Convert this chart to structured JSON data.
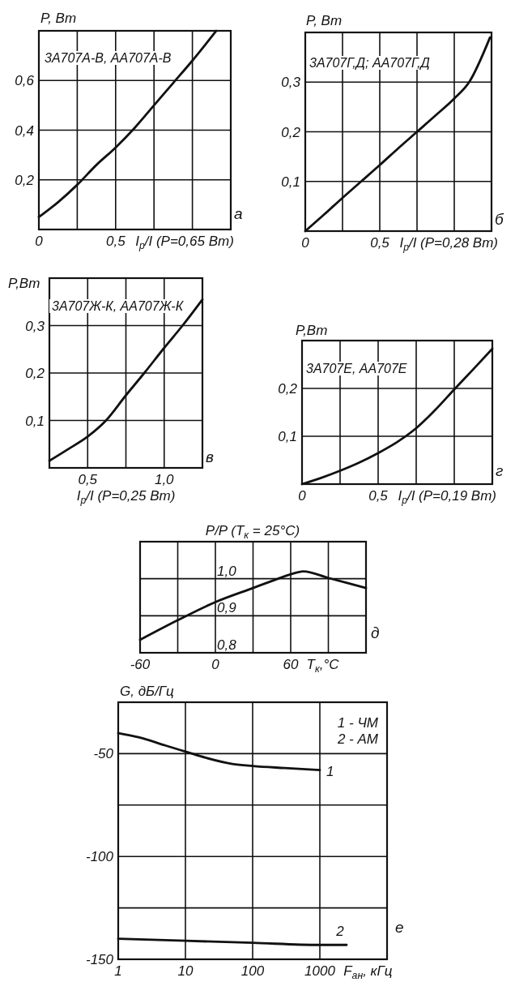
{
  "chart_data": [
    {
      "type": "line",
      "ylabel": "P, Вт",
      "xlabel": "I$_{р}$/I (P=0,65 Вт)",
      "x": [
        0,
        0.125,
        0.25,
        0.375,
        0.5,
        0.625,
        0.75,
        0.875,
        1.0,
        1.155
      ],
      "series": [
        {
          "name": "3А707А-В, АА707А-В",
          "color": "#111111",
          "values": [
            0.05,
            0.11,
            0.18,
            0.26,
            0.33,
            0.41,
            0.5,
            0.59,
            0.68,
            0.8
          ]
        }
      ],
      "xlim": [
        0,
        1.25
      ],
      "xticks": [
        0,
        {
          "value": 0.25,
          "label": null
        },
        {
          "value": 0.5,
          "label": "0,5"
        },
        {
          "value": 0.75,
          "label": null
        },
        {
          "value": 1,
          "label": null
        }
      ],
      "ylim": [
        0,
        0.8
      ],
      "yticks": [
        {
          "value": 0.2,
          "label": "0,2"
        },
        {
          "value": 0.4,
          "label": "0,4"
        },
        {
          "value": 0.6,
          "label": "0,6"
        }
      ],
      "grid": true,
      "annotations": [
        "а"
      ]
    },
    {
      "type": "line",
      "ylabel": "P, Вт",
      "xlabel": "I$_{р}$/I (P=0,28 Вт)",
      "x": [
        0,
        0.125,
        0.25,
        0.375,
        0.5,
        0.625,
        0.75,
        0.875,
        1.0,
        1.1,
        1.24
      ],
      "series": [
        {
          "name": "3А707Г,Д; АА707Г,Д",
          "color": "#111111",
          "values": [
            0,
            0.033,
            0.067,
            0.1,
            0.133,
            0.167,
            0.2,
            0.233,
            0.267,
            0.3,
            0.39
          ]
        }
      ],
      "xlim": [
        0,
        1.25
      ],
      "xticks": [
        0,
        {
          "value": 0.25,
          "label": null
        },
        {
          "value": 0.5,
          "label": "0,5"
        },
        {
          "value": 0.75,
          "label": null
        },
        {
          "value": 1,
          "label": null
        }
      ],
      "ylim": [
        0,
        0.4
      ],
      "yticks": [
        {
          "value": 0.1,
          "label": "0,1"
        },
        {
          "value": 0.2,
          "label": "0,2"
        },
        {
          "value": 0.3,
          "label": "0,3"
        }
      ],
      "grid": true,
      "annotations": [
        "б"
      ]
    },
    {
      "type": "line",
      "ylabel": "P,Вт",
      "xlabel": "I$_{р}$/I (P=0,25 Вт)",
      "x": [
        0.25,
        0.375,
        0.5,
        0.62,
        0.75,
        0.87,
        1.0,
        1.12,
        1.25
      ],
      "series": [
        {
          "name": "3А707Ж-К, АА707Ж-К",
          "color": "#111111",
          "values": [
            0.015,
            0.04,
            0.066,
            0.1,
            0.153,
            0.2,
            0.253,
            0.3,
            0.355
          ]
        }
      ],
      "xlim": [
        0.25,
        1.25
      ],
      "xticks": [
        {
          "value": 0.5,
          "label": "0,5"
        },
        {
          "value": 0.75,
          "label": null
        },
        {
          "value": 1,
          "label": "1,0"
        }
      ],
      "ylim": [
        0,
        0.4
      ],
      "yticks": [
        {
          "value": 0.1,
          "label": "0,1"
        },
        {
          "value": 0.2,
          "label": "0,2"
        },
        {
          "value": 0.3,
          "label": "0,3"
        }
      ],
      "grid": true,
      "annotations": [
        "в"
      ]
    },
    {
      "type": "line",
      "ylabel": "P,Вт",
      "xlabel": "I$_{р}$/I (P=0,19 Вт)",
      "x": [
        0,
        0.125,
        0.25,
        0.375,
        0.5,
        0.625,
        0.75,
        0.875,
        1.0,
        1.125,
        1.25
      ],
      "series": [
        {
          "name": "3А707Е, АА707Е",
          "color": "#111111",
          "values": [
            0,
            0.013,
            0.028,
            0.045,
            0.065,
            0.088,
            0.117,
            0.155,
            0.198,
            0.24,
            0.283
          ]
        }
      ],
      "xlim": [
        0,
        1.25
      ],
      "xticks": [
        0,
        {
          "value": 0.25,
          "label": null
        },
        {
          "value": 0.5,
          "label": "0,5"
        },
        {
          "value": 0.75,
          "label": null
        },
        {
          "value": 1,
          "label": null
        }
      ],
      "ylim": [
        0,
        0.3
      ],
      "yticks": [
        {
          "value": 0.1,
          "label": "0,1"
        },
        {
          "value": 0.2,
          "label": "0,2"
        }
      ],
      "grid": true,
      "annotations": [
        "г"
      ]
    },
    {
      "type": "line",
      "ylabel": "P/P (T$_{к}$ = 25°C)",
      "xlabel": "T$_{к}$,°C",
      "x": [
        -60,
        -30,
        0,
        30,
        50,
        60,
        70,
        90,
        120
      ],
      "series": [
        {
          "color": "#111111",
          "values": [
            0.835,
            0.888,
            0.937,
            0.975,
            1.0,
            1.012,
            1.02,
            1.002,
            0.975
          ]
        }
      ],
      "xlim": [
        -60,
        120
      ],
      "xticks": [
        -60,
        {
          "value": -30,
          "label": null
        },
        0,
        {
          "value": 30,
          "label": null
        },
        60,
        {
          "value": 90,
          "label": null
        }
      ],
      "ylim": [
        0.8,
        1.1
      ],
      "yticks": [
        {
          "value": 0.8,
          "label": "0,8"
        },
        {
          "value": 0.9,
          "label": "0,9"
        },
        {
          "value": 1.0,
          "label": "1,0"
        }
      ],
      "grid": true,
      "annotations": [
        "д"
      ]
    },
    {
      "type": "line",
      "ylabel": "G, дБ/Гц",
      "xlabel": "F$_{ан}$, кГц",
      "log": "x",
      "series": [
        {
          "name": "1",
          "color": "#111111",
          "x": [
            1,
            2,
            5,
            10,
            20,
            50,
            100,
            300,
            1000
          ],
          "values": [
            -40,
            -42,
            -46,
            -49,
            -52,
            -55,
            -56,
            -57,
            -58
          ]
        },
        {
          "name": "2",
          "color": "#111111",
          "x": [
            1,
            10,
            100,
            1000,
            2500
          ],
          "values": [
            -140,
            -141,
            -142,
            -143,
            -143
          ]
        }
      ],
      "xlim": [
        1,
        10000
      ],
      "xticks": [
        1,
        10,
        100,
        1000
      ],
      "ylim": [
        -150,
        -25
      ],
      "yticks": [
        -150,
        {
          "value": -125,
          "label": null
        },
        -100,
        {
          "value": -75,
          "label": null
        },
        -50
      ],
      "grid": true,
      "annotations": [
        "1 - ЧМ",
        "2 - АМ",
        "е"
      ]
    }
  ]
}
